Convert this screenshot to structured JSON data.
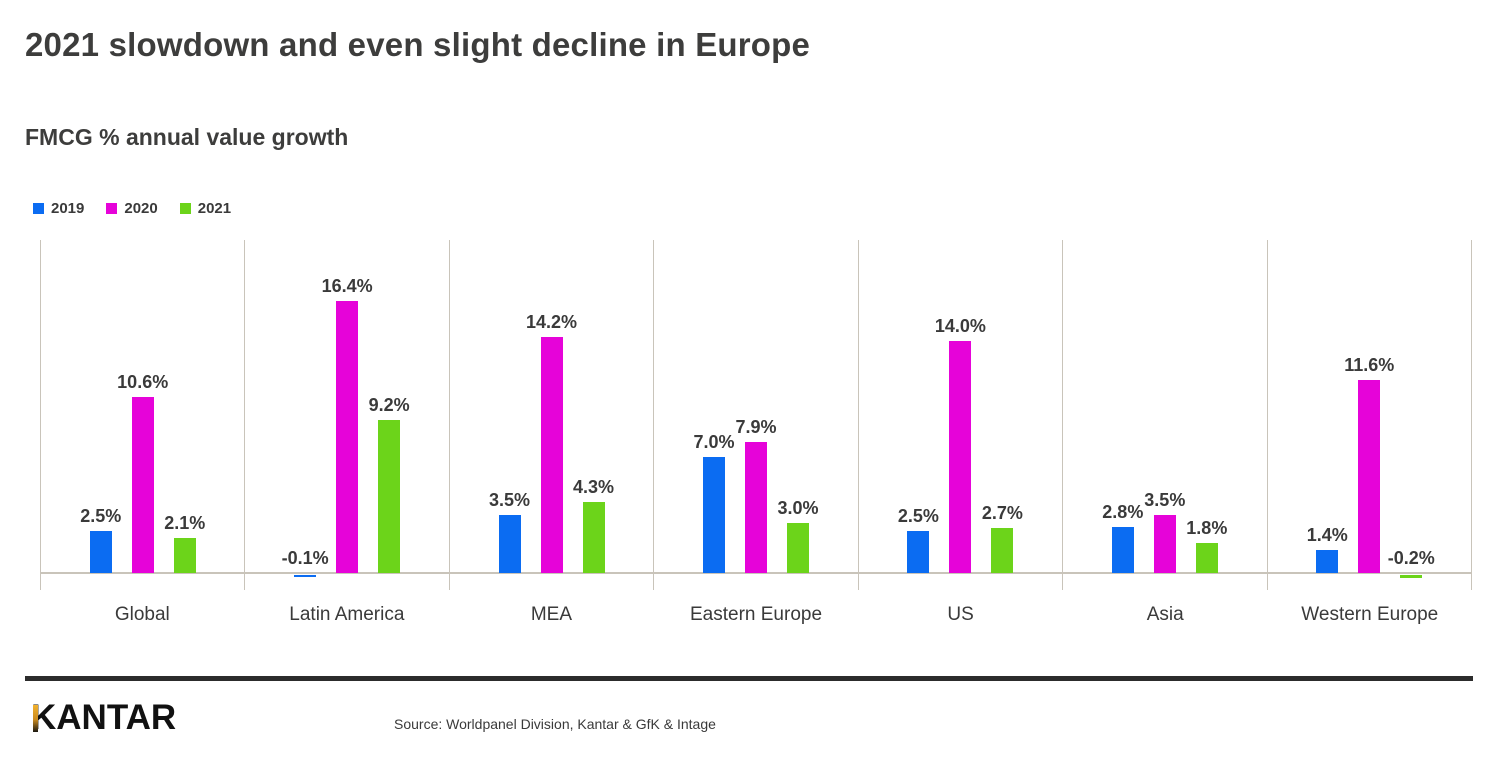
{
  "header": {
    "title": "2021 slowdown and even slight decline in Europe",
    "subtitle": "FMCG % annual value growth"
  },
  "chart_data": {
    "type": "bar",
    "title": "FMCG % annual value growth",
    "categories": [
      "Global",
      "Latin America",
      "MEA",
      "Eastern Europe",
      "US",
      "Asia",
      "Western Europe"
    ],
    "series": [
      {
        "name": "2019",
        "color": "#0b6cf2",
        "values": [
          2.5,
          -0.1,
          3.5,
          7.0,
          2.5,
          2.8,
          1.4
        ]
      },
      {
        "name": "2020",
        "color": "#e603d9",
        "values": [
          10.6,
          16.4,
          14.2,
          7.9,
          14.0,
          3.5,
          11.6
        ]
      },
      {
        "name": "2021",
        "color": "#6cd41a",
        "values": [
          2.1,
          9.2,
          4.3,
          3.0,
          2.7,
          1.8,
          -0.2
        ]
      }
    ],
    "value_label_suffix": "%",
    "value_label_decimals": 1,
    "ylim": [
      -0.5,
      17.5
    ],
    "legend_position": "top-left",
    "grid": "vertical-category-separators-only",
    "axis_color": "#c9c4ba",
    "label_color": "#3a3a3a"
  },
  "footer": {
    "logo_text": "KANTAR",
    "logo_accent_color": "#f2b22d",
    "source": "Source: Worldpanel Division, Kantar & GfK & Intage"
  }
}
